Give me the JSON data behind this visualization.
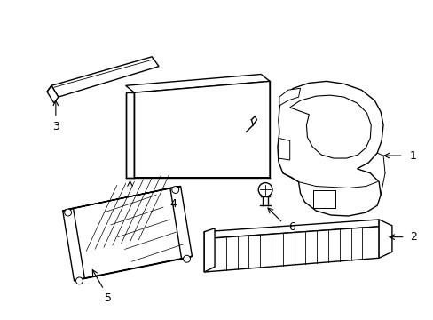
{
  "background_color": "#ffffff",
  "line_color": "#000000",
  "line_width": 1.0,
  "label_fontsize": 9,
  "fig_width": 4.89,
  "fig_height": 3.6,
  "dpi": 100
}
